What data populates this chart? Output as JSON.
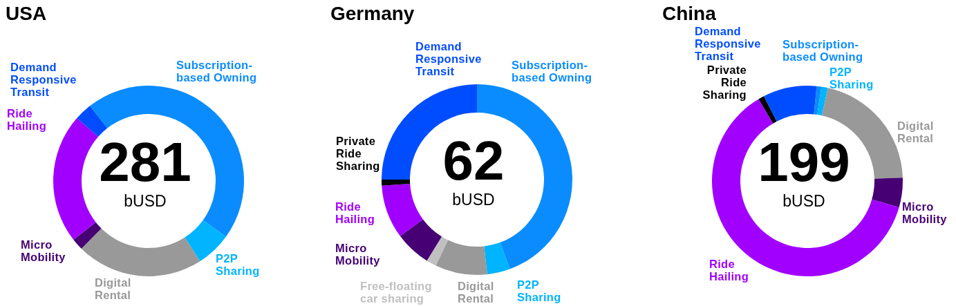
{
  "chart_data": [
    {
      "type": "donut",
      "title": "USA",
      "annotations": [
        "281",
        "bUSD"
      ],
      "categories": [
        "Subscription-based Owning",
        "P2P Sharing",
        "Digital Rental",
        "Micro Mobility",
        "Ride Hailing",
        "Demand Responsive Transit"
      ],
      "values": [
        45.5,
        6,
        21.5,
        2,
        22,
        3
      ],
      "colors": [
        "#0a8cff",
        "#00b4ff",
        "#999999",
        "#460073",
        "#a100ff",
        "#004dff"
      ],
      "legend": false
    },
    {
      "type": "donut",
      "title": "Germany",
      "annotations": [
        "62",
        "bUSD"
      ],
      "categories": [
        "Subscription-based Owning",
        "P2P Sharing",
        "Digital Rental",
        "Free-floating car sharing",
        "Micro Mobility",
        "Ride Hailing",
        "Private Ride Sharing",
        "Demand Responsive Transit"
      ],
      "values": [
        44.4,
        3.9,
        8.8,
        1.7,
        6.1,
        9.1,
        1,
        25
      ],
      "colors": [
        "#0a8cff",
        "#00b4ff",
        "#999999",
        "#c0c0c0",
        "#460073",
        "#a100ff",
        "#000000",
        "#004dff"
      ],
      "legend": false
    },
    {
      "type": "donut",
      "title": "China",
      "annotations": [
        "199",
        "bUSD"
      ],
      "categories": [
        "Subscription-based Owning",
        "P2P Sharing",
        "Digital Rental",
        "Micro Mobility",
        "Ride Hailing",
        "Private Ride Sharing",
        "Demand Responsive Transit"
      ],
      "values": [
        0.8,
        1.1,
        21,
        5,
        62,
        1,
        9.1
      ],
      "colors": [
        "#0a8cff",
        "#00b4ff",
        "#999999",
        "#460073",
        "#a100ff",
        "#000000",
        "#004dff"
      ],
      "legend": false
    }
  ]
}
